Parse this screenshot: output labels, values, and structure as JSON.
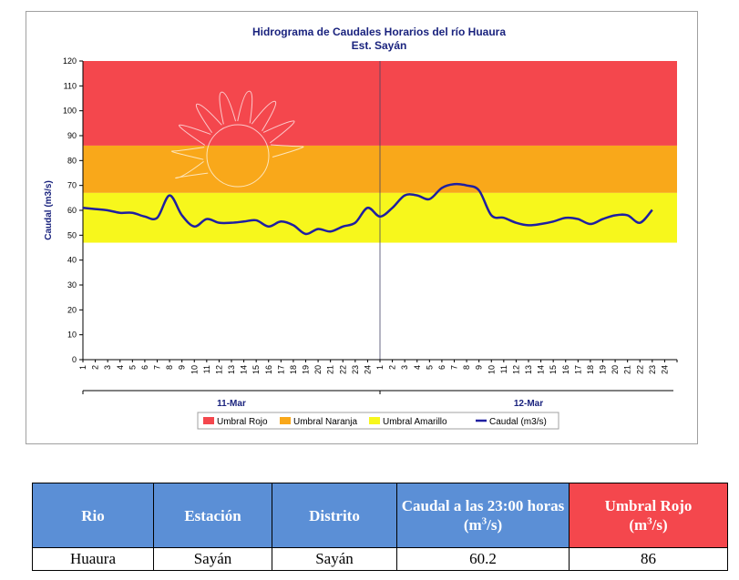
{
  "chart_data": {
    "type": "line",
    "title": "Hidrograma de Caudales Horarios del río Huaura",
    "subtitle": "Est. Sayán",
    "ylabel": "Caudal  (m3/s)",
    "ylim": [
      0,
      120
    ],
    "yticks": [
      0,
      10,
      20,
      30,
      40,
      50,
      60,
      70,
      80,
      90,
      100,
      110,
      120
    ],
    "hour_labels": [
      "1",
      "2",
      "3",
      "4",
      "5",
      "6",
      "7",
      "8",
      "9",
      "10",
      "11",
      "12",
      "13",
      "14",
      "15",
      "16",
      "17",
      "18",
      "19",
      "20",
      "21",
      "22",
      "23",
      "24"
    ],
    "day_groups": [
      {
        "label": "11-Mar",
        "hours": [
          "1",
          "2",
          "3",
          "4",
          "5",
          "6",
          "7",
          "8",
          "9",
          "10",
          "11",
          "12",
          "13",
          "14",
          "15",
          "16",
          "17",
          "18",
          "19",
          "20",
          "21",
          "22",
          "23",
          "24"
        ]
      },
      {
        "label": "12-Mar",
        "hours": [
          "1",
          "2",
          "3",
          "4",
          "5",
          "6",
          "7",
          "8",
          "9",
          "10",
          "11",
          "12",
          "13",
          "14",
          "15",
          "16",
          "17",
          "18",
          "19",
          "20",
          "21",
          "22",
          "23",
          "24"
        ]
      }
    ],
    "thresholds": [
      {
        "name": "Umbral Rojo",
        "from": 86,
        "to": 120,
        "color": "#f4474d"
      },
      {
        "name": "Umbral Naranja",
        "from": 67,
        "to": 86,
        "color": "#f9a81a"
      },
      {
        "name": "Umbral Amarillo",
        "from": 47,
        "to": 67,
        "color": "#f7f71c"
      }
    ],
    "series": [
      {
        "name": "Caudal (m3/s)",
        "color": "#1f1fa0",
        "values": [
          61,
          60.5,
          60,
          59,
          59,
          57.5,
          57,
          66,
          58,
          53.5,
          56.5,
          55,
          55,
          55.5,
          56,
          53.5,
          55.5,
          54,
          50.5,
          52.5,
          51.5,
          53.5,
          55,
          61,
          57.5,
          61,
          66,
          66,
          64.5,
          69,
          70.5,
          70,
          68,
          58,
          57,
          55,
          54,
          54.5,
          55.5,
          57,
          56.5,
          54.5,
          56.5,
          58,
          58,
          55,
          60.2
        ]
      }
    ],
    "legend": {
      "position": "bottom",
      "entries": [
        "Umbral Rojo",
        "Umbral Naranja",
        "Umbral Amarillo",
        "Caudal (m3/s)"
      ]
    },
    "grid": false
  },
  "table": {
    "headers": {
      "rio": "Rio",
      "estacion": "Estación",
      "distrito": "Distrito",
      "caudal_prefix": "Caudal a las 23:00 horas",
      "caudal_unit_base": "(m",
      "caudal_unit_sup": "3",
      "caudal_unit_end": "/s)",
      "umbral_prefix": "Umbral Rojo",
      "umbral_unit_base": "(m",
      "umbral_unit_sup": "3",
      "umbral_unit_end": "/s)"
    },
    "row": {
      "rio": "Huaura",
      "estacion": "Sayán",
      "distrito": "Sayán",
      "caudal": "60.2",
      "umbral": "86"
    }
  }
}
